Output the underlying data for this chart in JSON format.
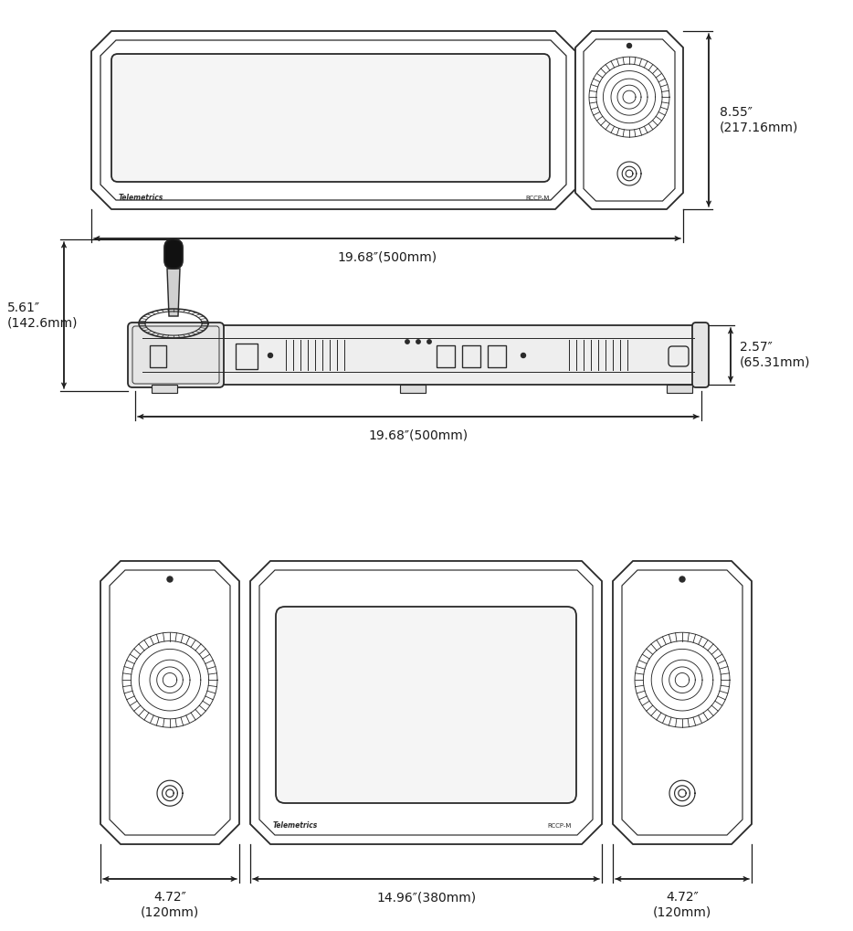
{
  "bg_color": "#ffffff",
  "line_color": "#2a2a2a",
  "lw": 1.3,
  "dim_color": "#1a1a1a",
  "label_fontsize": 10,
  "dim_label_1_w": "19.68″(500mm)",
  "dim_label_1_h": "8.55″\n(217.16mm)",
  "dim_label_2_w": "19.68″(500mm)",
  "dim_label_2_h_left": "5.61″\n(142.6mm)",
  "dim_label_2_h_right": "2.57″\n(65.31mm)",
  "dim_label_3_left": "4.72″\n(120mm)",
  "dim_label_3_mid": "14.96″(380mm)",
  "dim_label_3_right": "4.72″\n(120mm)",
  "telemetrics_text": "Telemetrics",
  "model_text": "RCCP-M"
}
